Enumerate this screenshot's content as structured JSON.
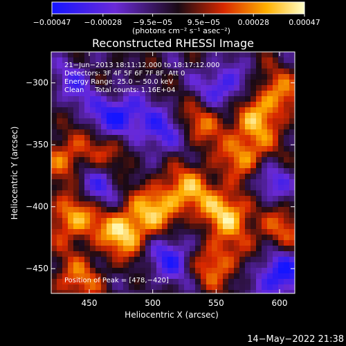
{
  "chart_data": {
    "type": "heatmap",
    "title": "Reconstructed RHESSI Image",
    "xlabel": "Heliocentric X (arcsec)",
    "ylabel": "Heliocentric Y (arcsec)",
    "xlim": [
      420,
      612
    ],
    "ylim": [
      -470,
      -275
    ],
    "x_ticks": [
      450,
      500,
      550,
      600
    ],
    "y_ticks": [
      -300,
      -350,
      -400,
      -450
    ],
    "x_tick_labels": [
      "450",
      "500",
      "550",
      "600"
    ],
    "y_tick_labels": [
      "−300",
      "−350",
      "−400",
      "−450"
    ],
    "colorbar": {
      "range": [
        -0.00047,
        0.00047
      ],
      "ticks": [
        -0.00047,
        -0.00028,
        -9.5e-05,
        9.5e-05,
        0.00028,
        0.00047
      ],
      "tick_labels": [
        "−0.00047",
        "−0.00028",
        "−9.5e−05",
        "9.5e−05",
        "0.00028",
        "0.00047"
      ],
      "units_label": "(photons cm⁻² s⁻¹ asec⁻²)"
    },
    "annotations": [
      "21−Jun−2013 18:11:12.000 to 18:17:12.000",
      "Detectors: 3F 4F 5F 6F 7F 8F, Att 0",
      "Energy Range: 25.0 − 50.0 keV",
      "Clean     Total counts: 1.16E+04"
    ],
    "peak_label": "Position of Peak = [478,−420]",
    "peak": {
      "x": 478,
      "y": -420
    },
    "grid": false,
    "hot_spots": [
      {
        "x": 432,
        "y": -360,
        "value": 0.0003
      },
      {
        "x": 438,
        "y": -408,
        "value": 0.00042
      },
      {
        "x": 470,
        "y": -350,
        "value": 0.00026
      },
      {
        "x": 478,
        "y": -420,
        "value": 0.00047
      },
      {
        "x": 505,
        "y": -400,
        "value": 0.00035
      },
      {
        "x": 540,
        "y": -330,
        "value": 0.00028
      },
      {
        "x": 560,
        "y": -405,
        "value": 0.00042
      },
      {
        "x": 575,
        "y": -360,
        "value": 0.00036
      },
      {
        "x": 580,
        "y": -330,
        "value": 0.00028
      },
      {
        "x": 598,
        "y": -310,
        "value": 0.0003
      },
      {
        "x": 550,
        "y": -445,
        "value": 0.00033
      },
      {
        "x": 440,
        "y": -460,
        "value": 0.00028
      },
      {
        "x": 455,
        "y": -300,
        "value": 0.00024
      },
      {
        "x": 530,
        "y": -385,
        "value": 0.0003
      },
      {
        "x": 600,
        "y": -420,
        "value": 0.00026
      }
    ],
    "cold_spots": [
      {
        "x": 472,
        "y": -328,
        "value": -0.00047
      },
      {
        "x": 445,
        "y": -300,
        "value": -0.00038
      },
      {
        "x": 555,
        "y": -305,
        "value": -0.00035
      },
      {
        "x": 600,
        "y": -455,
        "value": -0.00042
      },
      {
        "x": 515,
        "y": -440,
        "value": -0.00033
      },
      {
        "x": 505,
        "y": -340,
        "value": -0.0003
      },
      {
        "x": 455,
        "y": -385,
        "value": -0.00028
      },
      {
        "x": 590,
        "y": -380,
        "value": -0.00028
      }
    ]
  },
  "footer": {
    "timestamp": "14−May−2022 21:38"
  }
}
